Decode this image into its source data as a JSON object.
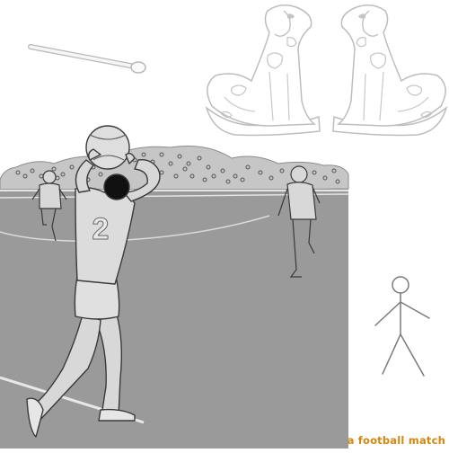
{
  "scene": {
    "caption": "a football match",
    "player_number": "2",
    "colors": {
      "pitch": "#9a9a9a",
      "pitch_line": "#e4e4e4",
      "outline": "#3a3a3a",
      "light_outline": "#bdbdbd",
      "caption": "#d9850f"
    },
    "icons": [
      "match-stick-icon",
      "dog-figurine-icon",
      "stick-figure-icon",
      "football-icon"
    ]
  }
}
